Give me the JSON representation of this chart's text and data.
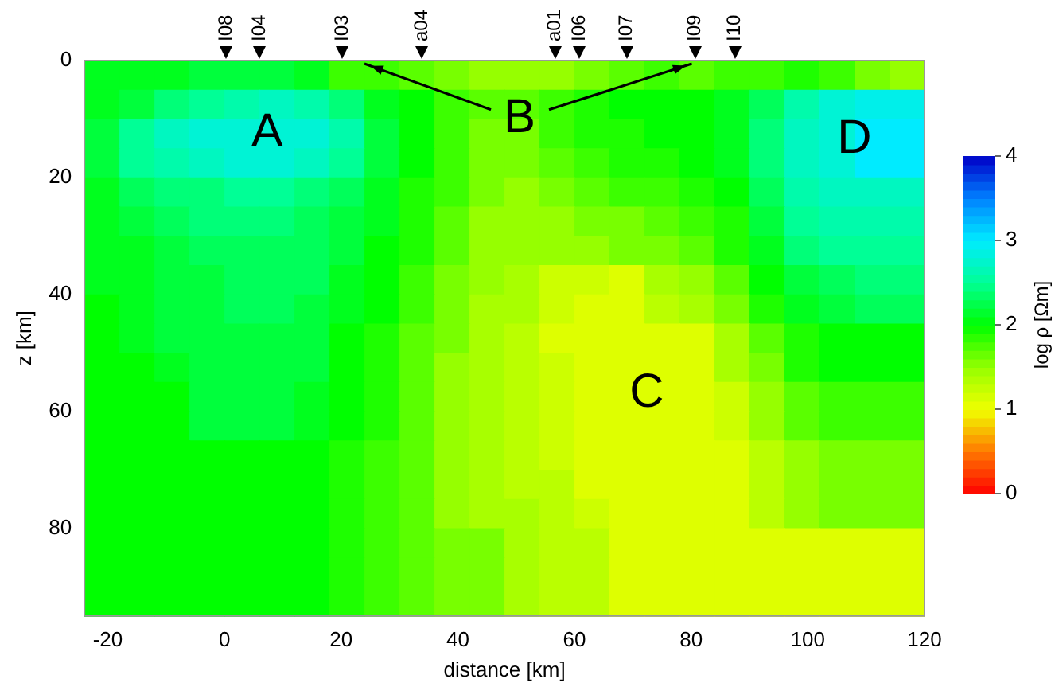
{
  "chart_data": {
    "type": "heatmap",
    "xlabel": "distance [km]",
    "ylabel": "z [km]",
    "clabel": "log ρ [Ωm]",
    "x": [
      -21,
      -15,
      -9,
      -3,
      3,
      9,
      15,
      21,
      27,
      33,
      39,
      45,
      51,
      57,
      63,
      69,
      75,
      81,
      87,
      93,
      99,
      105,
      111,
      117
    ],
    "y": [
      2.5,
      7.5,
      12.5,
      17.5,
      22.5,
      27.5,
      32.5,
      37.5,
      42.5,
      47.5,
      52.5,
      57.5,
      62.5,
      67.5,
      72.5,
      77.5,
      82.5,
      87.5,
      92.5
    ],
    "xlim": [
      -24,
      120
    ],
    "xticks": [
      -20,
      0,
      20,
      40,
      60,
      80,
      100,
      120
    ],
    "ylim": [
      95,
      0
    ],
    "yticks": [
      0,
      20,
      40,
      60,
      80
    ],
    "clim": [
      0,
      4
    ],
    "cticks": [
      0,
      1,
      2,
      3,
      4
    ],
    "grid": false,
    "legend": false,
    "cells": [
      [
        2.1,
        2.1,
        2.1,
        2.2,
        2.2,
        2.2,
        2.1,
        1.8,
        1.8,
        1.7,
        1.6,
        1.5,
        1.5,
        1.5,
        1.6,
        1.7,
        1.8,
        1.7,
        1.8,
        1.8,
        1.9,
        1.8,
        1.6,
        1.5
      ],
      [
        2.1,
        2.2,
        2.4,
        2.5,
        2.6,
        2.7,
        2.6,
        2.4,
        2.1,
        2.0,
        1.8,
        1.7,
        1.7,
        1.8,
        1.9,
        2.0,
        2.0,
        2.0,
        2.1,
        2.3,
        2.6,
        2.8,
        2.9,
        2.9
      ],
      [
        2.2,
        2.5,
        2.7,
        2.8,
        2.8,
        2.8,
        2.8,
        2.6,
        2.2,
        2.0,
        1.8,
        1.6,
        1.6,
        1.8,
        1.9,
        1.9,
        2.0,
        2.0,
        2.1,
        2.4,
        2.7,
        2.8,
        3.0,
        3.0
      ],
      [
        2.2,
        2.5,
        2.6,
        2.7,
        2.8,
        2.8,
        2.7,
        2.5,
        2.2,
        2.0,
        1.8,
        1.6,
        1.6,
        1.7,
        1.8,
        1.9,
        1.9,
        2.0,
        2.1,
        2.4,
        2.7,
        2.8,
        3.0,
        3.0
      ],
      [
        2.1,
        2.3,
        2.4,
        2.4,
        2.5,
        2.5,
        2.4,
        2.3,
        2.1,
        1.9,
        1.8,
        1.6,
        1.5,
        1.6,
        1.7,
        1.8,
        1.8,
        1.9,
        2.0,
        2.3,
        2.6,
        2.7,
        2.7,
        2.7
      ],
      [
        2.1,
        2.2,
        2.3,
        2.4,
        2.4,
        2.4,
        2.3,
        2.2,
        2.1,
        1.9,
        1.7,
        1.5,
        1.5,
        1.5,
        1.6,
        1.6,
        1.7,
        1.8,
        1.9,
        2.2,
        2.5,
        2.6,
        2.6,
        2.6
      ],
      [
        2.1,
        2.1,
        2.2,
        2.3,
        2.3,
        2.3,
        2.3,
        2.2,
        2.0,
        1.9,
        1.7,
        1.5,
        1.5,
        1.5,
        1.5,
        1.6,
        1.6,
        1.7,
        1.9,
        2.1,
        2.4,
        2.5,
        2.5,
        2.5
      ],
      [
        2.1,
        2.1,
        2.2,
        2.2,
        2.3,
        2.3,
        2.3,
        2.1,
        2.0,
        1.8,
        1.6,
        1.5,
        1.4,
        1.2,
        1.2,
        1.1,
        1.4,
        1.5,
        1.7,
        2.0,
        2.2,
        2.3,
        2.4,
        2.4
      ],
      [
        2.0,
        2.1,
        2.2,
        2.2,
        2.3,
        2.3,
        2.2,
        2.1,
        2.0,
        1.8,
        1.6,
        1.4,
        1.4,
        1.2,
        1.1,
        1.1,
        1.3,
        1.4,
        1.6,
        1.9,
        2.1,
        2.2,
        2.3,
        2.3
      ],
      [
        2.0,
        2.1,
        2.2,
        2.2,
        2.2,
        2.2,
        2.2,
        2.0,
        1.9,
        1.7,
        1.6,
        1.4,
        1.3,
        1.1,
        1.1,
        1.1,
        1.1,
        1.1,
        1.4,
        1.7,
        1.9,
        2.0,
        2.0,
        2.0
      ],
      [
        2.0,
        2.0,
        2.1,
        2.2,
        2.2,
        2.2,
        2.2,
        2.0,
        1.9,
        1.7,
        1.5,
        1.4,
        1.3,
        1.2,
        1.1,
        1.1,
        1.1,
        1.1,
        1.4,
        1.6,
        1.9,
        2.0,
        2.0,
        2.0
      ],
      [
        2.0,
        2.0,
        2.0,
        2.2,
        2.2,
        2.2,
        2.1,
        2.0,
        1.9,
        1.7,
        1.5,
        1.4,
        1.3,
        1.2,
        1.1,
        1.1,
        1.1,
        1.1,
        1.2,
        1.5,
        1.7,
        1.8,
        1.8,
        1.8
      ],
      [
        2.0,
        2.0,
        2.0,
        2.2,
        2.2,
        2.2,
        2.1,
        2.0,
        1.9,
        1.7,
        1.5,
        1.4,
        1.3,
        1.2,
        1.1,
        1.1,
        1.1,
        1.1,
        1.2,
        1.5,
        1.7,
        1.8,
        1.8,
        1.8
      ],
      [
        2.0,
        2.0,
        2.0,
        2.0,
        2.0,
        2.0,
        2.0,
        1.9,
        1.8,
        1.7,
        1.5,
        1.4,
        1.3,
        1.2,
        1.1,
        1.1,
        1.1,
        1.1,
        1.1,
        1.3,
        1.5,
        1.6,
        1.6,
        1.6
      ],
      [
        2.0,
        2.0,
        2.0,
        2.0,
        2.0,
        2.0,
        2.0,
        1.9,
        1.8,
        1.7,
        1.5,
        1.4,
        1.3,
        1.3,
        1.1,
        1.1,
        1.1,
        1.1,
        1.1,
        1.3,
        1.5,
        1.6,
        1.6,
        1.6
      ],
      [
        2.0,
        2.0,
        2.0,
        2.0,
        2.0,
        2.0,
        2.0,
        1.9,
        1.8,
        1.7,
        1.5,
        1.4,
        1.4,
        1.3,
        1.2,
        1.1,
        1.1,
        1.1,
        1.1,
        1.3,
        1.5,
        1.6,
        1.6,
        1.6
      ],
      [
        2.0,
        2.0,
        2.0,
        2.0,
        2.0,
        2.0,
        2.0,
        1.9,
        1.8,
        1.7,
        1.6,
        1.6,
        1.4,
        1.3,
        1.3,
        1.1,
        1.1,
        1.1,
        1.1,
        1.1,
        1.1,
        1.1,
        1.1,
        1.1
      ],
      [
        2.0,
        2.0,
        2.0,
        2.0,
        2.0,
        2.0,
        2.0,
        1.9,
        1.8,
        1.7,
        1.6,
        1.6,
        1.4,
        1.3,
        1.3,
        1.1,
        1.1,
        1.1,
        1.1,
        1.1,
        1.1,
        1.1,
        1.1,
        1.1
      ],
      [
        2.0,
        2.0,
        2.0,
        2.0,
        2.0,
        2.0,
        2.0,
        1.9,
        1.8,
        1.7,
        1.6,
        1.6,
        1.4,
        1.3,
        1.3,
        1.1,
        1.1,
        1.1,
        1.1,
        1.1,
        1.1,
        1.1,
        1.1,
        1.1
      ]
    ],
    "annotations": [
      "I08",
      "I04",
      "I03",
      "a04",
      "a01",
      "I06",
      "I07",
      "I09",
      "I10",
      "A",
      "B",
      "C",
      "D"
    ]
  }
}
